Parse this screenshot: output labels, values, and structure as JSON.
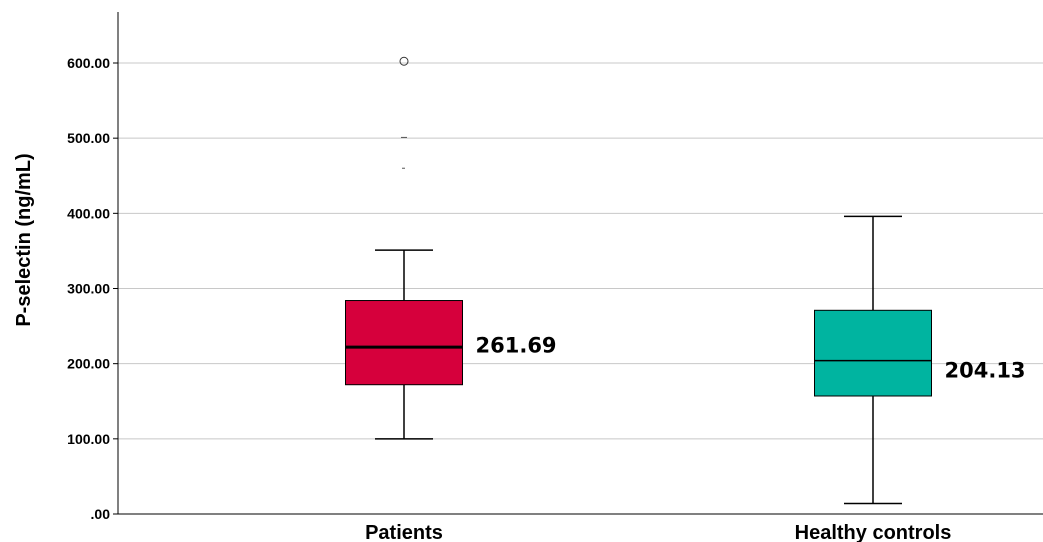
{
  "chart_data": {
    "type": "boxplot",
    "ylabel": "P-selectin (ng/mL)",
    "ylim": [
      0,
      600
    ],
    "yticks": [
      0,
      100,
      200,
      300,
      400,
      500,
      600
    ],
    "ytick_labels": [
      ".00",
      "100.00",
      "200.00",
      "300.00",
      "400.00",
      "500.00",
      "600.00"
    ],
    "grid": "horizontal",
    "categories": [
      "Patients",
      "Healthy controls"
    ],
    "boxes": [
      {
        "category": "Patients",
        "color": "#D6003C",
        "whisker_low": 100,
        "q1": 172,
        "median": 222,
        "q3": 284,
        "whisker_high": 351,
        "outliers": [
          601
        ],
        "extremes": [
          501,
          460
        ],
        "label": "261.69"
      },
      {
        "category": "Healthy controls",
        "color": "#00B4A0",
        "whisker_low": 14,
        "q1": 157,
        "median": 204,
        "q3": 271,
        "whisker_high": 396,
        "outliers": [],
        "extremes": [],
        "label": "204.13"
      }
    ]
  }
}
